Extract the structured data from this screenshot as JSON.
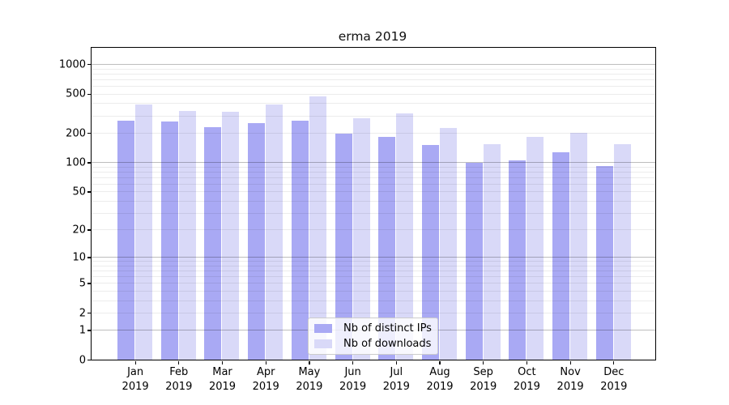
{
  "chart_data": {
    "type": "bar",
    "title": "erma 2019",
    "year": "2019",
    "categories": [
      "Jan",
      "Feb",
      "Mar",
      "Apr",
      "May",
      "Jun",
      "Jul",
      "Aug",
      "Sep",
      "Oct",
      "Nov",
      "Dec"
    ],
    "series": [
      {
        "name": "Nb of distinct IPs",
        "color": "#a9a9f4",
        "values": [
          267,
          260,
          230,
          252,
          268,
          197,
          181,
          151,
          98,
          105,
          127,
          91
        ]
      },
      {
        "name": "Nb of downloads",
        "color": "#d9d9f8",
        "values": [
          390,
          335,
          329,
          390,
          470,
          280,
          313,
          225,
          154,
          181,
          199,
          152
        ]
      }
    ],
    "yscale": "log1p",
    "ylim": [
      0,
      1450
    ],
    "yticks": [
      {
        "label": "0",
        "value": 0
      },
      {
        "label": "1",
        "value": 1
      },
      {
        "label": "2",
        "value": 2
      },
      {
        "label": "5",
        "value": 5
      },
      {
        "label": "10",
        "value": 10
      },
      {
        "label": "20",
        "value": 20
      },
      {
        "label": "50",
        "value": 50
      },
      {
        "label": "100",
        "value": 100
      },
      {
        "label": "200",
        "value": 200
      },
      {
        "label": "500",
        "value": 500
      },
      {
        "label": "1000",
        "value": 1000
      }
    ],
    "grid": "horizontal, major at 1/10/100/1000, minor at 2-9 per decade",
    "legend": {
      "position": "lower center",
      "entries": [
        "Nb of distinct IPs",
        "Nb of downloads"
      ]
    }
  }
}
